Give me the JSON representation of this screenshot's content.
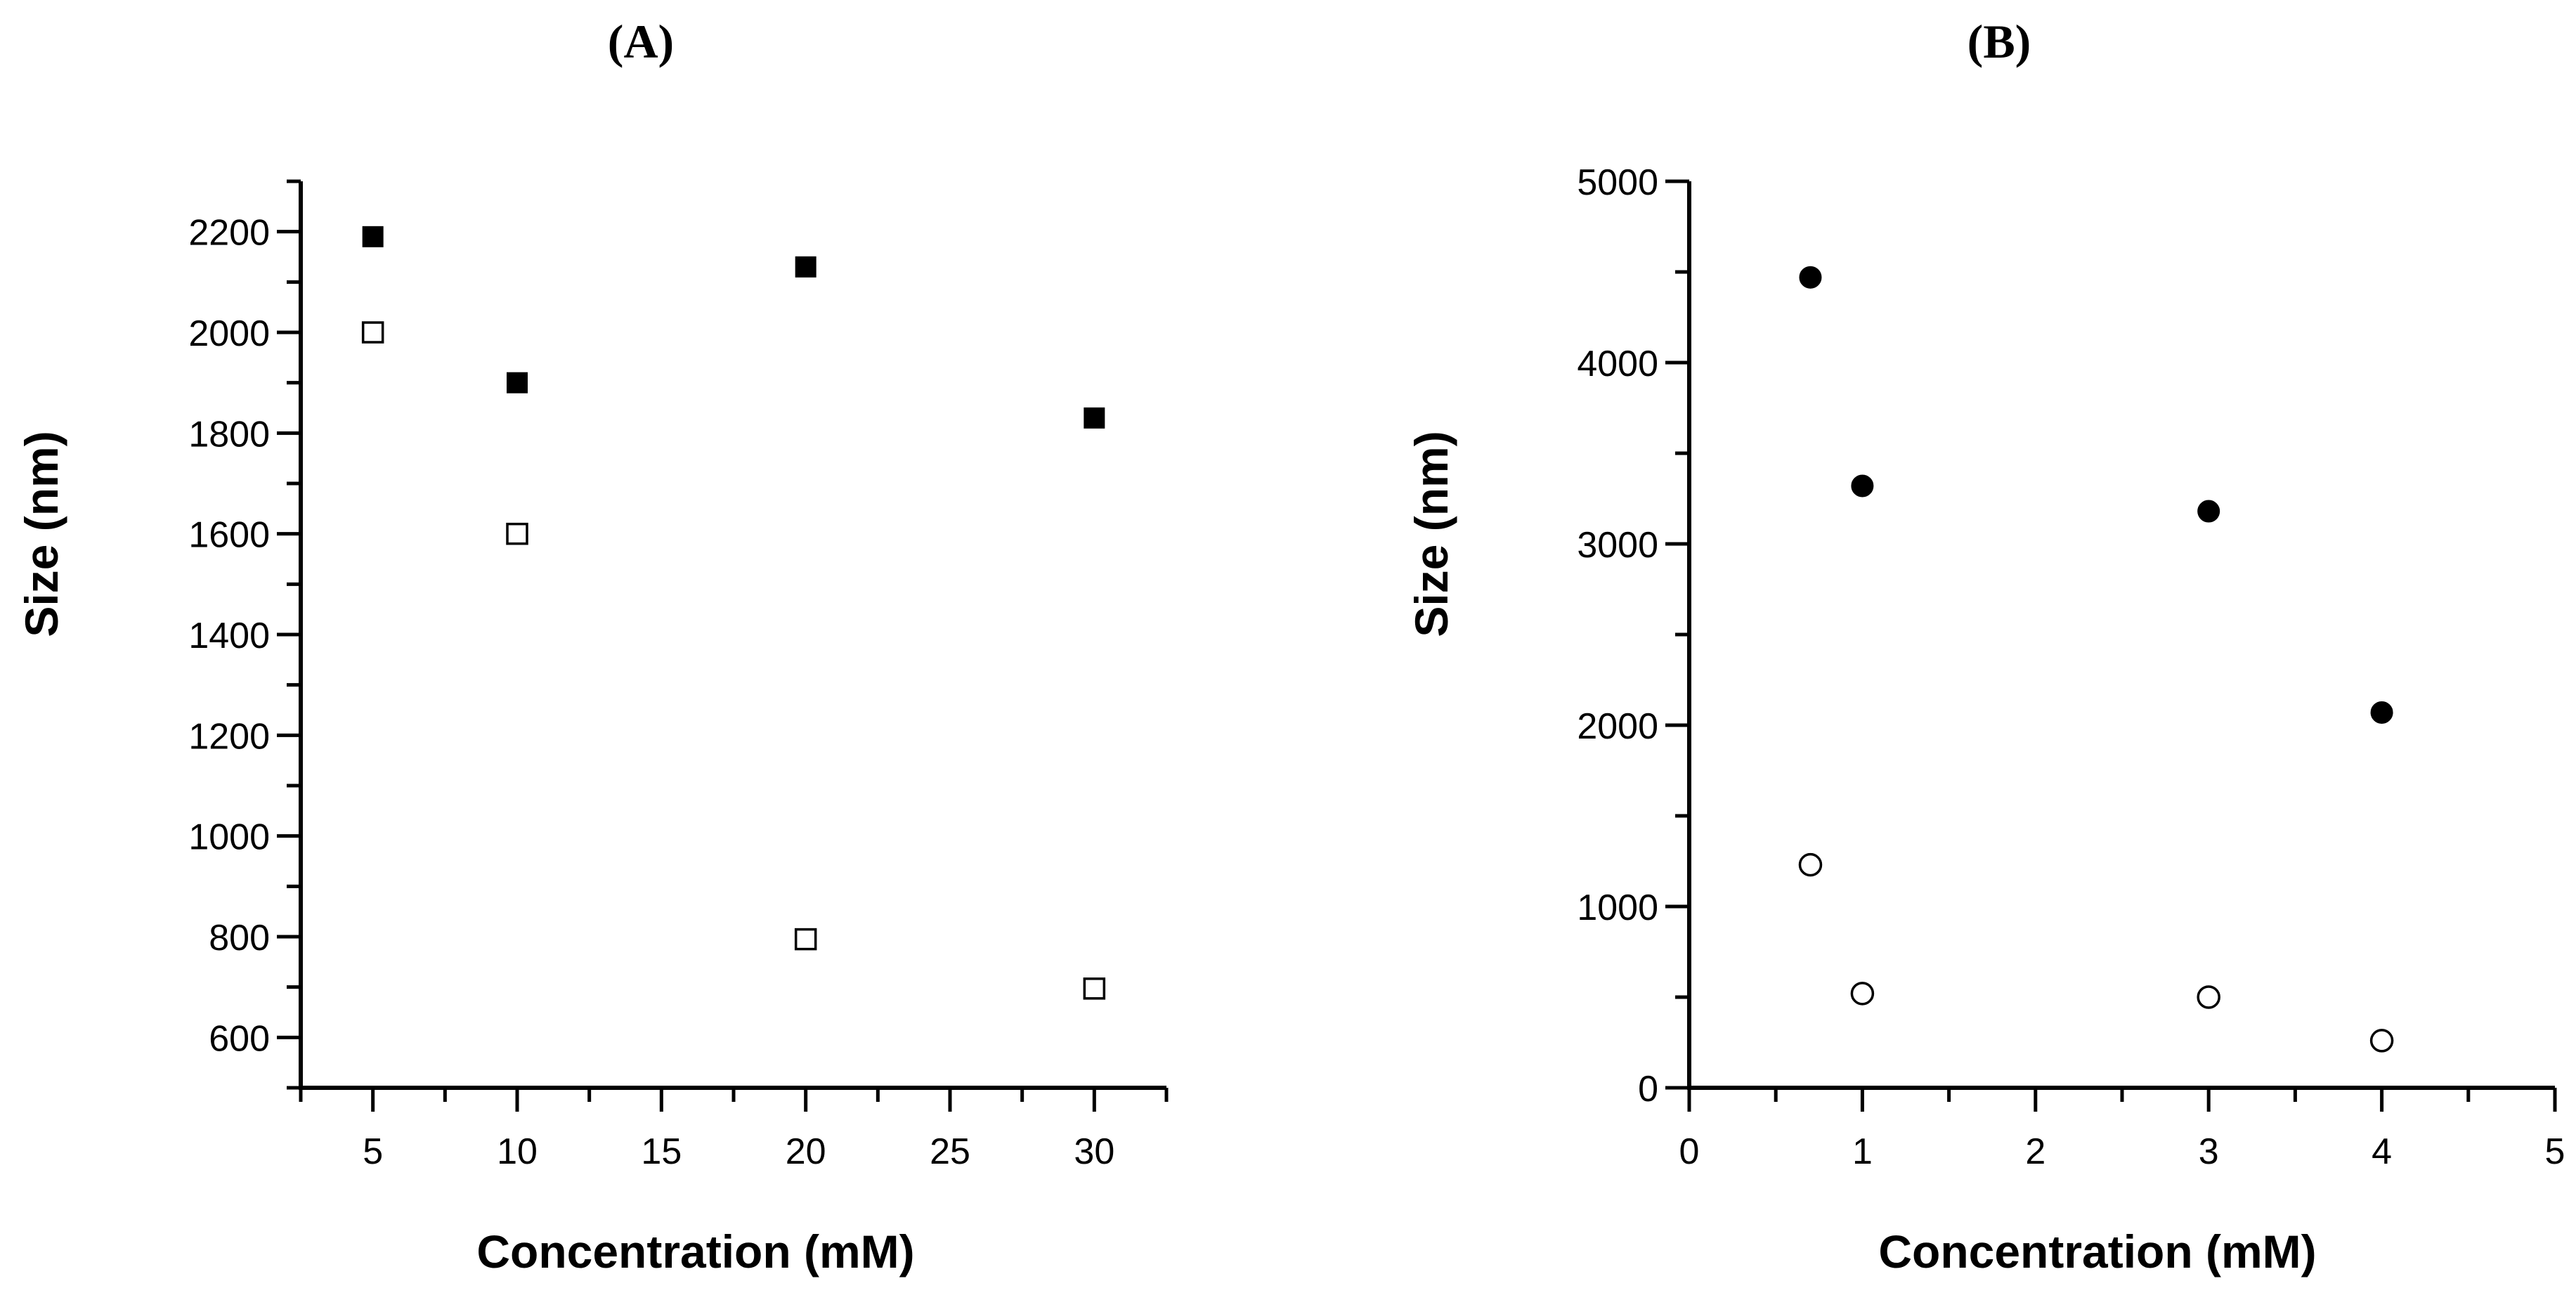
{
  "chart_data": [
    {
      "type": "scatter",
      "panel_label": "(A)",
      "xlabel": "Concentration (mM)",
      "ylabel": "Size (nm)",
      "xlim": [
        2.5,
        32.5
      ],
      "ylim": [
        500,
        2300
      ],
      "xticks": [
        "5",
        "10",
        "15",
        "20",
        "25",
        "30"
      ],
      "yticks": [
        "600",
        "800",
        "1000",
        "1200",
        "1400",
        "1600",
        "1800",
        "2000",
        "2200"
      ],
      "series": [
        {
          "name": "filled squares",
          "marker": "square-filled",
          "x": [
            5,
            10,
            20,
            30
          ],
          "y": [
            2190,
            1900,
            2130,
            1830
          ]
        },
        {
          "name": "open squares",
          "marker": "square-open",
          "x": [
            5,
            10,
            20,
            30
          ],
          "y": [
            2000,
            1600,
            795,
            697
          ]
        }
      ]
    },
    {
      "type": "scatter",
      "panel_label": "(B)",
      "xlabel": "Concentration (mM)",
      "ylabel": "Size (nm)",
      "xlim": [
        0,
        5
      ],
      "ylim": [
        0,
        5000
      ],
      "xticks": [
        "0",
        "1",
        "2",
        "3",
        "4",
        "5"
      ],
      "yticks": [
        "0",
        "1000",
        "2000",
        "3000",
        "4000",
        "5000"
      ],
      "series": [
        {
          "name": "filled circles",
          "marker": "circle-filled",
          "x": [
            0.7,
            1,
            3,
            4
          ],
          "y": [
            4470,
            3320,
            3180,
            2070
          ]
        },
        {
          "name": "open circles",
          "marker": "circle-open",
          "x": [
            0.7,
            1,
            3,
            4
          ],
          "y": [
            1230,
            520,
            500,
            260
          ]
        }
      ]
    }
  ]
}
